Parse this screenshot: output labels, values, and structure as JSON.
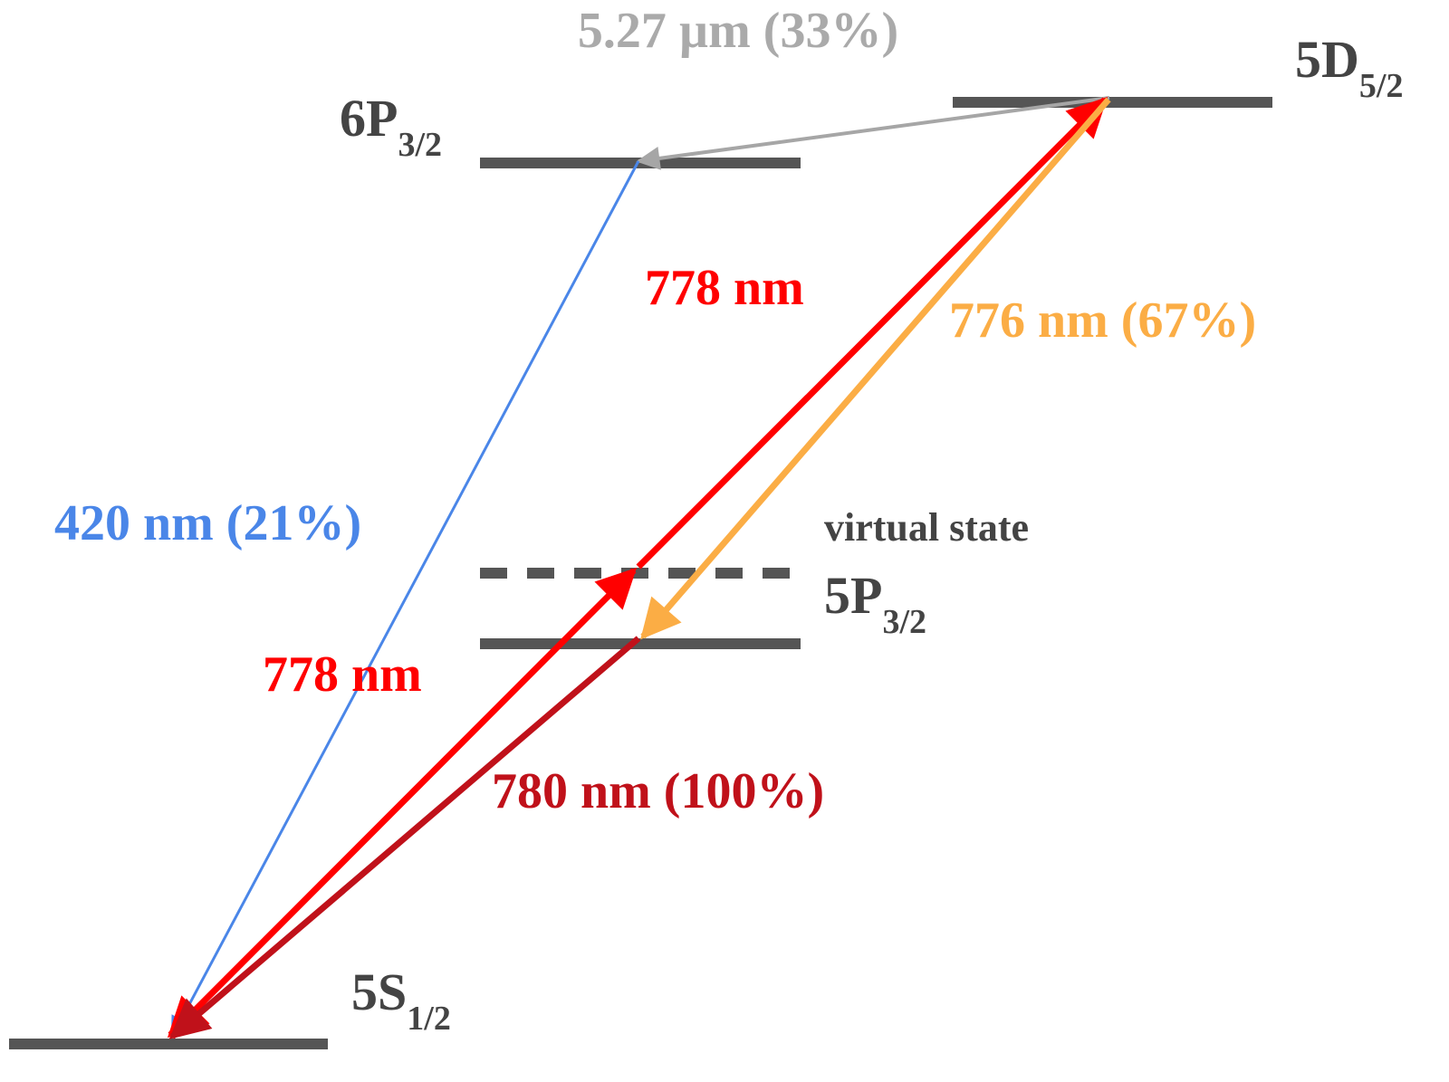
{
  "levels": [
    {
      "name": "5S",
      "subscript": "1/2"
    },
    {
      "name": "5P",
      "subscript": "3/2"
    },
    {
      "name": "6P",
      "subscript": "3/2"
    },
    {
      "name": "5D",
      "subscript": "5/2"
    }
  ],
  "virtual_state": "virtual state",
  "transitions": [
    {
      "label": "5.27 µm (33%)"
    },
    {
      "label": "420 nm (21%)"
    },
    {
      "label": "778 nm"
    },
    {
      "label": "776 nm (67%)"
    },
    {
      "label": "778 nm"
    },
    {
      "label": "780 nm (100%)"
    }
  ]
}
